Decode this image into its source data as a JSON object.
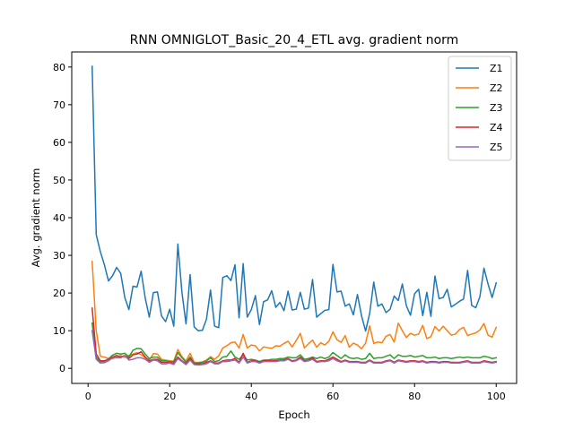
{
  "chart_data": {
    "type": "line",
    "title": "RNN OMNIGLOT_Basic_20_4_ETL avg. gradient norm",
    "xlabel": "Epoch",
    "ylabel": "Avg. gradient norm",
    "xlim": [
      -4,
      105
    ],
    "ylim": [
      -4,
      84
    ],
    "xticks": [
      0,
      20,
      40,
      60,
      80,
      100
    ],
    "yticks": [
      0,
      10,
      20,
      30,
      40,
      50,
      60,
      70,
      80
    ],
    "legend": "top-right",
    "grid": false,
    "x": [
      1,
      2,
      3,
      4,
      5,
      6,
      7,
      8,
      9,
      10,
      11,
      12,
      13,
      14,
      15,
      16,
      17,
      18,
      19,
      20,
      21,
      22,
      23,
      24,
      25,
      26,
      27,
      28,
      29,
      30,
      31,
      32,
      33,
      34,
      35,
      36,
      37,
      38,
      39,
      40,
      41,
      42,
      43,
      44,
      45,
      46,
      47,
      48,
      49,
      50,
      51,
      52,
      53,
      54,
      55,
      56,
      57,
      58,
      59,
      60,
      61,
      62,
      63,
      64,
      65,
      66,
      67,
      68,
      69,
      70,
      71,
      72,
      73,
      74,
      75,
      76,
      77,
      78,
      79,
      80,
      81,
      82,
      83,
      84,
      85,
      86,
      87,
      88,
      89,
      90,
      91,
      92,
      93,
      94,
      95,
      96,
      97,
      98,
      99,
      100
    ],
    "series": [
      {
        "name": "Z1",
        "color": "#1f77b4",
        "values": [
          80.2,
          35.5,
          31.0,
          27.5,
          23.2,
          24.6,
          26.8,
          25.2,
          18.8,
          15.6,
          21.8,
          21.6,
          25.8,
          18.7,
          13.6,
          20.1,
          20.3,
          13.9,
          12.4,
          15.7,
          11.2,
          33.0,
          20.2,
          11.8,
          24.9,
          11.0,
          10.0,
          10.1,
          13.0,
          20.8,
          11.2,
          10.8,
          24.1,
          24.6,
          23.3,
          27.5,
          13.4,
          27.8,
          13.6,
          15.6,
          19.3,
          11.6,
          17.7,
          18.2,
          20.6,
          16.2,
          17.5,
          15.3,
          20.5,
          15.5,
          15.7,
          20.2,
          15.7,
          16.0,
          23.6,
          13.6,
          14.5,
          15.4,
          15.6,
          27.6,
          20.3,
          20.5,
          16.5,
          17.1,
          14.2,
          19.6,
          14.0,
          9.9,
          14.6,
          22.9,
          16.5,
          17.1,
          14.8,
          15.7,
          19.2,
          18.0,
          22.4,
          16.6,
          14.1,
          19.8,
          21.0,
          14.0,
          20.2,
          13.8,
          24.5,
          18.5,
          18.8,
          21.0,
          16.3,
          17.0,
          17.8,
          18.4,
          26.0,
          16.7,
          16.1,
          19.0,
          26.6,
          22.4,
          18.8,
          22.7
        ]
      },
      {
        "name": "Z2",
        "color": "#ff7f0e",
        "values": [
          28.4,
          10.0,
          3.2,
          3.0,
          2.6,
          2.6,
          3.0,
          3.4,
          2.9,
          3.4,
          3.8,
          4.2,
          3.6,
          2.8,
          2.2,
          3.9,
          3.8,
          2.4,
          2.2,
          2.0,
          1.9,
          5.0,
          3.1,
          2.0,
          4.0,
          1.6,
          1.6,
          1.7,
          2.2,
          3.1,
          2.4,
          3.3,
          5.4,
          6.0,
          6.8,
          7.0,
          5.4,
          9.0,
          5.4,
          6.2,
          6.0,
          4.6,
          5.7,
          5.5,
          5.3,
          6.0,
          5.9,
          6.6,
          7.2,
          5.7,
          7.4,
          9.3,
          5.4,
          6.5,
          7.5,
          5.6,
          6.8,
          6.2,
          7.2,
          9.7,
          7.6,
          6.9,
          8.7,
          5.6,
          6.7,
          6.2,
          5.2,
          6.7,
          11.3,
          6.6,
          7.0,
          6.8,
          8.5,
          9.0,
          7.0,
          12.0,
          10.0,
          8.2,
          9.3,
          8.8,
          9.1,
          11.4,
          7.9,
          8.4,
          11.1,
          9.9,
          11.2,
          10.0,
          8.8,
          9.1,
          10.3,
          10.9,
          8.7,
          9.1,
          9.4,
          10.2,
          11.9,
          8.8,
          8.3,
          10.9
        ]
      },
      {
        "name": "Z3",
        "color": "#2ca02c",
        "values": [
          12.0,
          3.0,
          1.8,
          1.8,
          2.5,
          3.5,
          4.0,
          3.8,
          4.0,
          3.0,
          4.8,
          5.3,
          5.2,
          3.8,
          2.6,
          3.0,
          3.0,
          2.0,
          2.0,
          1.8,
          1.8,
          4.2,
          2.8,
          1.6,
          3.0,
          1.4,
          1.4,
          1.6,
          2.0,
          2.8,
          1.8,
          2.0,
          3.0,
          3.2,
          4.6,
          3.0,
          2.4,
          3.6,
          2.2,
          2.4,
          2.2,
          1.8,
          2.2,
          2.2,
          2.4,
          2.4,
          2.6,
          2.6,
          3.0,
          2.8,
          2.8,
          3.6,
          2.4,
          2.6,
          3.0,
          2.6,
          3.0,
          2.6,
          3.0,
          4.2,
          3.4,
          2.6,
          3.6,
          2.8,
          2.6,
          2.8,
          2.4,
          2.6,
          4.0,
          2.6,
          2.8,
          2.8,
          3.2,
          3.6,
          2.6,
          3.6,
          3.2,
          3.2,
          3.4,
          3.0,
          3.2,
          3.4,
          2.8,
          2.8,
          3.0,
          2.6,
          2.8,
          2.8,
          2.6,
          2.8,
          3.0,
          2.8,
          3.0,
          2.8,
          2.8,
          2.8,
          3.2,
          3.0,
          2.6,
          2.8
        ]
      },
      {
        "name": "Z4",
        "color": "#d62728",
        "values": [
          16.0,
          3.8,
          2.0,
          2.0,
          2.4,
          3.0,
          3.4,
          3.0,
          3.4,
          2.6,
          3.6,
          3.8,
          4.4,
          3.0,
          2.0,
          2.4,
          2.4,
          1.6,
          1.6,
          1.6,
          1.4,
          3.0,
          2.0,
          1.2,
          2.6,
          1.2,
          1.2,
          1.2,
          1.6,
          2.0,
          1.4,
          1.4,
          2.0,
          2.2,
          2.2,
          2.6,
          1.6,
          4.0,
          1.6,
          2.0,
          2.0,
          1.6,
          2.0,
          2.0,
          2.0,
          2.0,
          2.2,
          2.2,
          2.6,
          2.0,
          2.2,
          3.0,
          2.0,
          2.2,
          2.8,
          1.8,
          2.0,
          2.0,
          2.4,
          3.0,
          2.4,
          1.8,
          2.2,
          1.8,
          1.8,
          1.8,
          1.6,
          1.6,
          2.2,
          1.6,
          1.6,
          1.6,
          2.0,
          2.2,
          1.6,
          2.2,
          2.0,
          1.8,
          2.0,
          2.0,
          1.8,
          2.0,
          1.6,
          1.8,
          1.8,
          1.6,
          1.8,
          1.8,
          1.6,
          1.6,
          1.6,
          1.8,
          2.0,
          1.6,
          1.6,
          1.6,
          2.0,
          1.8,
          1.6,
          1.8
        ]
      },
      {
        "name": "Z5",
        "color": "#9467bd",
        "values": [
          10.0,
          2.4,
          1.4,
          1.5,
          2.0,
          2.8,
          2.8,
          2.8,
          3.4,
          2.2,
          2.4,
          2.8,
          2.8,
          2.4,
          1.6,
          2.2,
          2.0,
          1.2,
          1.2,
          1.4,
          1.0,
          2.6,
          1.8,
          1.0,
          2.2,
          1.0,
          0.9,
          1.0,
          1.2,
          1.8,
          1.2,
          1.2,
          1.8,
          1.8,
          2.0,
          2.2,
          1.4,
          3.0,
          1.4,
          1.8,
          1.8,
          1.4,
          1.8,
          1.8,
          1.8,
          1.8,
          2.0,
          2.0,
          2.4,
          1.8,
          2.0,
          2.6,
          1.8,
          2.0,
          2.4,
          1.6,
          1.8,
          1.8,
          2.0,
          2.6,
          2.0,
          1.6,
          2.0,
          1.6,
          1.6,
          1.6,
          1.4,
          1.4,
          2.0,
          1.4,
          1.4,
          1.4,
          1.8,
          2.0,
          1.4,
          2.0,
          1.8,
          1.6,
          1.8,
          1.8,
          1.6,
          1.8,
          1.4,
          1.6,
          1.6,
          1.4,
          1.6,
          1.6,
          1.4,
          1.4,
          1.4,
          1.6,
          1.8,
          1.4,
          1.4,
          1.4,
          1.8,
          1.6,
          1.4,
          1.6
        ]
      }
    ]
  }
}
